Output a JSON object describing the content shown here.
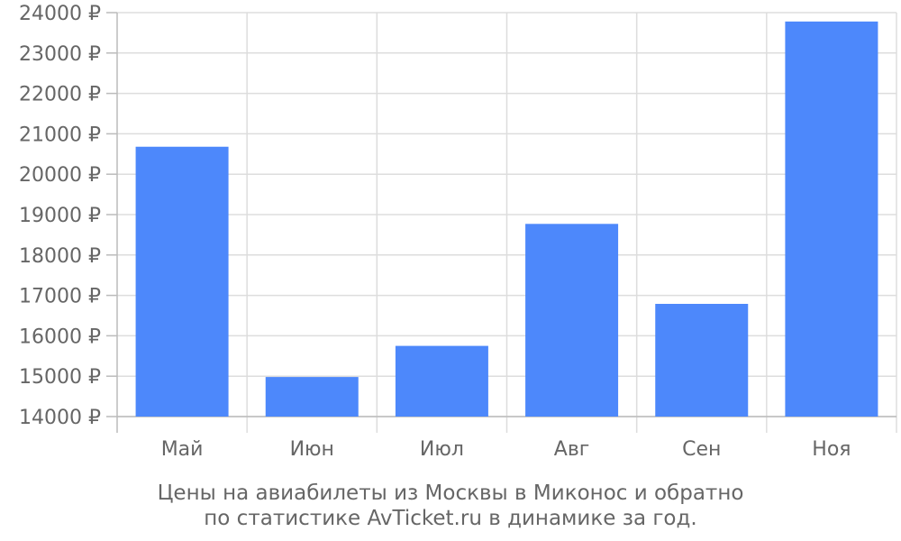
{
  "chart_data": {
    "type": "bar",
    "categories": [
      "Май",
      "Июн",
      "Июл",
      "Авг",
      "Сен",
      "Ноя"
    ],
    "values": [
      20680,
      14980,
      15750,
      18770,
      16790,
      23780
    ],
    "ylim": [
      14000,
      24000
    ],
    "ytick_step": 1000,
    "currency_suffix": " ₽",
    "grid": true,
    "bar_color": "#4d88fb",
    "grid_color": "#dddddd",
    "text_color": "#666666",
    "caption_lines": [
      "Цены на авиабилеты из Москвы в Миконос и обратно",
      "по статистике AvTicket.ru в динамике за год."
    ]
  }
}
